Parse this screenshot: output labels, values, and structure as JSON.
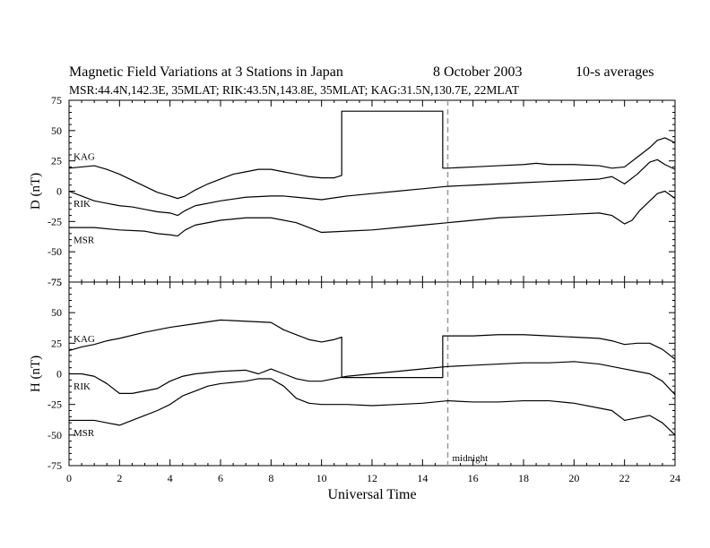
{
  "title": {
    "main": "Magnetic Field Variations at 3 Stations in Japan",
    "date": "8   October 2003",
    "averaging": "10-s averages",
    "subtitle": "MSR:44.4N,142.3E, 35MLAT;  RIK:43.5N,143.8E, 35MLAT;  KAG:31.5N,130.7E, 22MLAT"
  },
  "chart_data": [
    {
      "type": "line",
      "panel": "D",
      "ylabel": "D (nT)",
      "ylim": [
        -75,
        75
      ],
      "yticks": [
        75,
        50,
        25,
        0,
        -25,
        -50,
        -75
      ],
      "xlim": [
        0,
        24
      ],
      "xticks": [
        0,
        2,
        4,
        6,
        8,
        10,
        12,
        14,
        16,
        18,
        20,
        22,
        24
      ],
      "marker": {
        "x": 15,
        "label": "",
        "style": "dashed",
        "color": "#9a9a9a"
      },
      "series": [
        {
          "name": "KAG",
          "x": [
            0,
            0.5,
            1,
            1.5,
            2,
            2.5,
            3,
            3.5,
            4,
            4.3,
            4.6,
            5,
            5.5,
            6,
            6.5,
            7,
            7.5,
            8,
            8.5,
            9,
            9.5,
            10,
            10.5,
            10.8,
            10.8,
            14.8,
            14.8,
            15,
            16,
            17,
            18,
            18.5,
            19,
            20,
            21,
            21.5,
            22,
            22.5,
            23,
            23.3,
            23.6,
            24
          ],
          "y": [
            19,
            20,
            21,
            18,
            14,
            9,
            4,
            -1,
            -4,
            -6,
            -4,
            1,
            6,
            10,
            14,
            16,
            18,
            18,
            16,
            14,
            12,
            11,
            11,
            13,
            66,
            66,
            19,
            19,
            20,
            21,
            22,
            23,
            22,
            22,
            21,
            19,
            20,
            28,
            36,
            42,
            44,
            40
          ]
        },
        {
          "name": "RIK",
          "x": [
            0,
            0.5,
            1,
            1.5,
            2,
            2.5,
            3,
            3.5,
            4,
            4.3,
            4.6,
            5,
            6,
            7,
            8,
            8.5,
            9,
            10,
            11,
            12,
            13,
            14,
            15,
            16,
            17,
            18,
            19,
            20,
            21,
            21.5,
            22,
            22.5,
            23,
            23.3,
            23.6,
            24
          ],
          "y": [
            0,
            -4,
            -8,
            -10,
            -12,
            -13,
            -15,
            -17,
            -18,
            -20,
            -16,
            -12,
            -8,
            -5,
            -4,
            -4,
            -5,
            -7,
            -4,
            -2,
            0,
            2,
            4,
            5,
            6,
            7,
            8,
            9,
            10,
            12,
            6,
            14,
            24,
            26,
            22,
            18
          ]
        },
        {
          "name": "MSR",
          "x": [
            0,
            1,
            2,
            3,
            3.5,
            4,
            4.3,
            4.6,
            5,
            6,
            7,
            8,
            9,
            10,
            11,
            12,
            13,
            14,
            15,
            16,
            17,
            18,
            19,
            20,
            21,
            21.5,
            22,
            22.3,
            22.6,
            23,
            23.3,
            23.6,
            24
          ],
          "y": [
            -30,
            -30,
            -32,
            -33,
            -35,
            -36,
            -37,
            -32,
            -28,
            -24,
            -22,
            -22,
            -26,
            -34,
            -33,
            -32,
            -30,
            -28,
            -26,
            -24,
            -22,
            -21,
            -20,
            -19,
            -18,
            -20,
            -27,
            -24,
            -16,
            -8,
            -2,
            0,
            -6
          ]
        }
      ]
    },
    {
      "type": "line",
      "panel": "H",
      "ylabel": "H (nT)",
      "xlabel": "Universal Time",
      "ylim": [
        -75,
        75
      ],
      "yticks": [
        75,
        50,
        25,
        0,
        -25,
        -50,
        -75
      ],
      "xlim": [
        0,
        24
      ],
      "xticks": [
        0,
        2,
        4,
        6,
        8,
        10,
        12,
        14,
        16,
        18,
        20,
        22,
        24
      ],
      "marker": {
        "x": 15,
        "label": "midnight",
        "style": "dashed",
        "color": "#9a9a9a"
      },
      "series": [
        {
          "name": "KAG",
          "x": [
            0,
            0.5,
            1,
            1.5,
            2,
            3,
            4,
            5,
            6,
            7,
            8,
            8.5,
            9,
            9.5,
            10,
            10.5,
            10.8,
            10.8,
            14.8,
            14.8,
            15,
            16,
            17,
            18,
            19,
            20,
            21,
            21.5,
            22,
            22.5,
            23,
            23.5,
            24
          ],
          "y": [
            19,
            22,
            24,
            27,
            29,
            34,
            38,
            41,
            44,
            43,
            42,
            36,
            32,
            28,
            26,
            28,
            30,
            -3,
            -3,
            31,
            31,
            31,
            32,
            32,
            31,
            30,
            29,
            27,
            24,
            25,
            25,
            20,
            12
          ]
        },
        {
          "name": "RIK",
          "x": [
            0,
            0.5,
            1,
            1.5,
            2,
            2.5,
            3,
            3.5,
            4,
            4.5,
            5,
            6,
            7,
            7.5,
            8,
            8.5,
            9,
            9.5,
            10,
            10.5,
            11,
            12,
            13,
            14,
            15,
            16,
            17,
            18,
            19,
            20,
            21,
            22,
            22.5,
            23,
            23.5,
            24
          ],
          "y": [
            0,
            0,
            -2,
            -8,
            -16,
            -16,
            -14,
            -12,
            -6,
            -2,
            0,
            2,
            3,
            0,
            4,
            0,
            -4,
            -6,
            -6,
            -4,
            -2,
            0,
            2,
            4,
            6,
            7,
            8,
            9,
            9,
            10,
            8,
            4,
            2,
            0,
            -6,
            -17
          ]
        },
        {
          "name": "MSR",
          "x": [
            0,
            1,
            1.5,
            2,
            2.5,
            3,
            3.5,
            4,
            4.5,
            5,
            5.5,
            6,
            7,
            7.5,
            8,
            8.5,
            9,
            9.5,
            10,
            11,
            12,
            13,
            14,
            15,
            16,
            17,
            18,
            19,
            20,
            21,
            21.5,
            22,
            22.5,
            23,
            23.5,
            24
          ],
          "y": [
            -38,
            -38,
            -40,
            -42,
            -38,
            -34,
            -30,
            -25,
            -18,
            -14,
            -10,
            -8,
            -6,
            -4,
            -4,
            -10,
            -20,
            -24,
            -25,
            -25,
            -26,
            -25,
            -24,
            -22,
            -23,
            -23,
            -22,
            -22,
            -24,
            -28,
            -30,
            -38,
            -36,
            -34,
            -40,
            -50
          ]
        }
      ]
    }
  ]
}
